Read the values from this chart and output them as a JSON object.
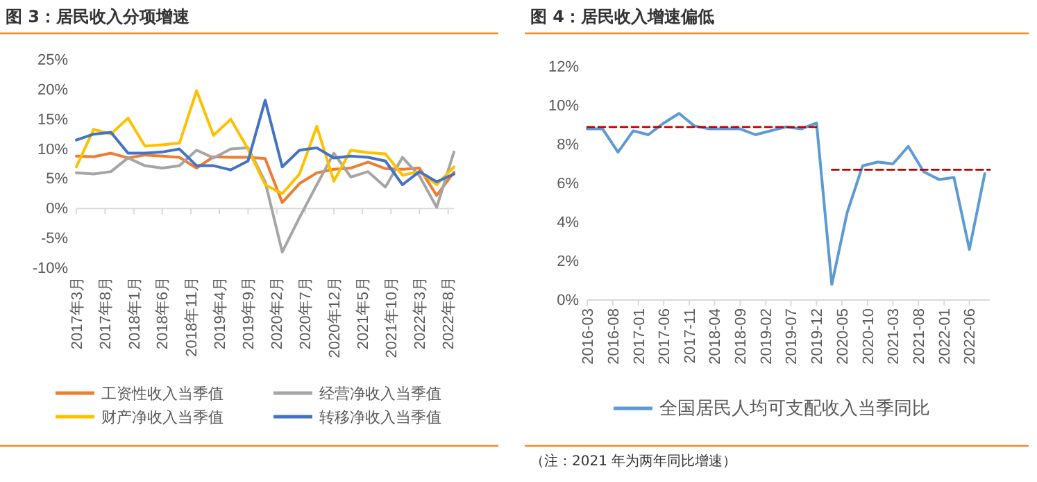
{
  "chart_data": [
    {
      "type": "line",
      "title": "图 3：居民收入分项增速",
      "x": [
        "2017-03",
        "2017-06",
        "2017-09",
        "2017-12",
        "2018-03",
        "2018-06",
        "2018-09",
        "2018-12",
        "2019-03",
        "2019-06",
        "2019-09",
        "2019-12",
        "2020-03",
        "2020-06",
        "2020-09",
        "2020-12",
        "2021-03",
        "2021-06",
        "2021-09",
        "2021-12",
        "2022-03",
        "2022-06",
        "2022-09"
      ],
      "series": [
        {
          "name": "工资性收入当季值",
          "color": "#ed7d31",
          "values": [
            8.8,
            8.7,
            9.3,
            8.5,
            9.0,
            8.8,
            8.6,
            6.8,
            8.7,
            8.6,
            8.6,
            8.4,
            1.0,
            4.2,
            6.0,
            6.6,
            6.8,
            7.8,
            6.7,
            6.6,
            6.8,
            2.2,
            6.1
          ]
        },
        {
          "name": "经营净收入当季值",
          "color": "#a5a5a5",
          "values": [
            6.0,
            5.8,
            6.2,
            8.5,
            7.2,
            6.8,
            7.2,
            9.8,
            8.5,
            10.0,
            10.2,
            4.5,
            -7.3,
            -1.5,
            4.0,
            9.3,
            5.3,
            6.2,
            3.6,
            8.6,
            5.5,
            0.2,
            9.5
          ]
        },
        {
          "name": "财产净收入当季值",
          "color": "#ffc000",
          "values": [
            7.0,
            13.3,
            12.5,
            15.2,
            10.5,
            10.7,
            11.0,
            19.8,
            12.3,
            15.0,
            10.0,
            4.0,
            2.5,
            5.8,
            13.8,
            4.6,
            9.8,
            9.4,
            9.2,
            5.6,
            6.2,
            4.0,
            7.0
          ]
        },
        {
          "name": "转移净收入当季值",
          "color": "#4472c4",
          "values": [
            11.5,
            12.5,
            12.8,
            9.3,
            9.3,
            9.5,
            10.0,
            7.2,
            7.2,
            6.5,
            8.0,
            18.2,
            7.0,
            9.8,
            10.2,
            8.5,
            8.8,
            8.6,
            8.0,
            4.0,
            6.2,
            4.5,
            5.8
          ]
        }
      ],
      "xlim": [
        "2017-03",
        "2022-09"
      ],
      "xticks": [
        {
          "value": "2017-03",
          "label": "2017年3月"
        },
        {
          "value": "2017-08",
          "label": "2017年8月"
        },
        {
          "value": "2018-01",
          "label": "2018年1月"
        },
        {
          "value": "2018-06",
          "label": "2018年6月"
        },
        {
          "value": "2018-11",
          "label": "2018年11月"
        },
        {
          "value": "2019-04",
          "label": "2019年4月"
        },
        {
          "value": "2019-09",
          "label": "2019年9月"
        },
        {
          "value": "2020-02",
          "label": "2020年2月"
        },
        {
          "value": "2020-07",
          "label": "2020年7月"
        },
        {
          "value": "2020-12",
          "label": "2020年12月"
        },
        {
          "value": "2021-05",
          "label": "2021年5月"
        },
        {
          "value": "2021-10",
          "label": "2021年10月"
        },
        {
          "value": "2022-03",
          "label": "2022年3月"
        },
        {
          "value": "2022-08",
          "label": "2022年8月"
        }
      ],
      "ylim": [
        -10,
        25
      ],
      "yticks": [
        {
          "value": -10,
          "label": "-10%"
        },
        {
          "value": -5,
          "label": "-5%"
        },
        {
          "value": 0,
          "label": "0%"
        },
        {
          "value": 5,
          "label": "5%"
        },
        {
          "value": 10,
          "label": "10%"
        },
        {
          "value": 15,
          "label": "15%"
        },
        {
          "value": 20,
          "label": "20%"
        },
        {
          "value": 25,
          "label": "25%"
        }
      ],
      "ref_lines": [
        {
          "axis": "y",
          "value": 0,
          "color": "#d9d9d9"
        }
      ],
      "grid": false,
      "legend": "bottom",
      "line_style": "solid",
      "marker": "none"
    },
    {
      "type": "line",
      "title": "图 4：居民收入增速偏低",
      "x": [
        "2016-03",
        "2016-06",
        "2016-09",
        "2016-12",
        "2017-03",
        "2017-06",
        "2017-09",
        "2017-12",
        "2018-03",
        "2018-06",
        "2018-09",
        "2018-12",
        "2019-03",
        "2019-06",
        "2019-09",
        "2019-12",
        "2020-03",
        "2020-06",
        "2020-09",
        "2020-12",
        "2021-03",
        "2021-06",
        "2021-09",
        "2021-12",
        "2022-03",
        "2022-06",
        "2022-09"
      ],
      "series": [
        {
          "name": "全国居民人均可支配收入当季同比",
          "color": "#5b9bd5",
          "values": [
            8.8,
            8.8,
            7.6,
            8.7,
            8.5,
            9.1,
            9.6,
            8.95,
            8.8,
            8.8,
            8.8,
            8.5,
            8.7,
            8.9,
            8.8,
            9.1,
            0.8,
            4.5,
            6.9,
            7.1,
            7.0,
            7.9,
            6.6,
            6.2,
            6.3,
            2.6,
            6.5
          ]
        },
        {
          "type": "line",
          "color": "#c00000",
          "line_style": "dashed",
          "x": [
            "2016-03",
            "2019-12"
          ],
          "values": [
            8.9,
            8.9
          ]
        },
        {
          "type": "line",
          "color": "#c00000",
          "line_style": "dashed",
          "x": [
            "2020-03",
            "2022-10"
          ],
          "values": [
            6.7,
            6.7
          ]
        }
      ],
      "xlim": [
        "2016-03",
        "2022-10"
      ],
      "xticks": [
        {
          "value": "2016-03",
          "label": "2016-03"
        },
        {
          "value": "2016-08",
          "label": "2016-08"
        },
        {
          "value": "2017-01",
          "label": "2017-01"
        },
        {
          "value": "2017-06",
          "label": "2017-06"
        },
        {
          "value": "2017-11",
          "label": "2017-11"
        },
        {
          "value": "2018-04",
          "label": "2018-04"
        },
        {
          "value": "2018-09",
          "label": "2018-09"
        },
        {
          "value": "2019-02",
          "label": "2019-02"
        },
        {
          "value": "2019-07",
          "label": "2019-07"
        },
        {
          "value": "2019-12",
          "label": "2019-12"
        },
        {
          "value": "2020-05",
          "label": "2020-05"
        },
        {
          "value": "2020-10",
          "label": "2020-10"
        },
        {
          "value": "2021-03",
          "label": "2021-03"
        },
        {
          "value": "2021-08",
          "label": "2021-08"
        },
        {
          "value": "2022-01",
          "label": "2022-01"
        },
        {
          "value": "2022-06",
          "label": "2022-06"
        }
      ],
      "ylim": [
        0,
        12
      ],
      "yticks": [
        {
          "value": 0,
          "label": "0%"
        },
        {
          "value": 2,
          "label": "2%"
        },
        {
          "value": 4,
          "label": "4%"
        },
        {
          "value": 6,
          "label": "6%"
        },
        {
          "value": 8,
          "label": "8%"
        },
        {
          "value": 10,
          "label": "10%"
        },
        {
          "value": 12,
          "label": "12%"
        }
      ],
      "grid": false,
      "legend": "bottom",
      "line_style": "solid",
      "marker": "none",
      "annotations": [
        "（注：2021 年为两年同比增速）"
      ]
    }
  ]
}
